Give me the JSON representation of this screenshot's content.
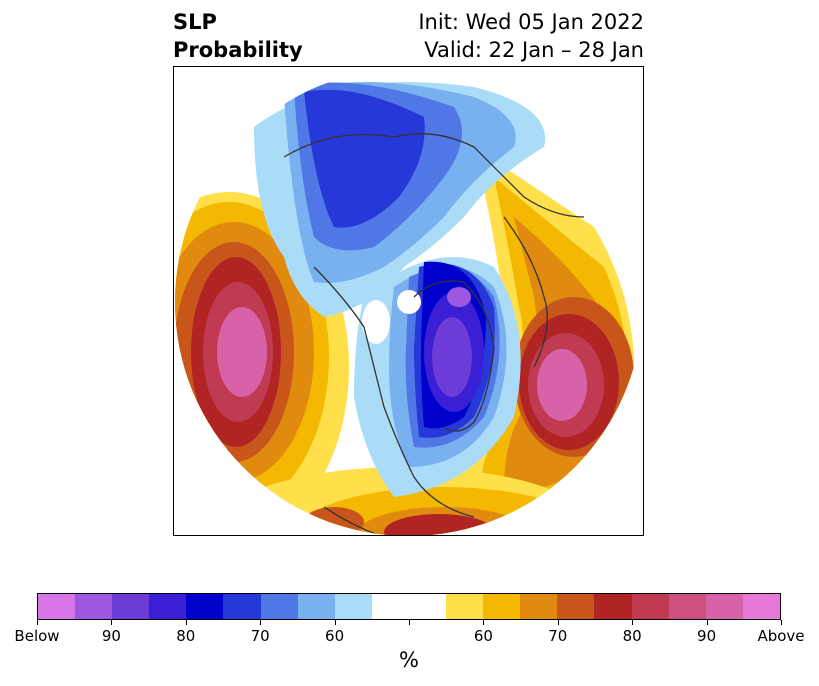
{
  "title": {
    "left_line1": "SLP",
    "left_line2": "Probability",
    "right_line1": "Init: Wed 05 Jan 2022",
    "right_line2": "Valid: 22 Jan – 28 Jan"
  },
  "colorbar": {
    "unit_label": "%",
    "colors": [
      "#d875e8",
      "#9e57e0",
      "#6c3bd8",
      "#3a1fd4",
      "#0000cc",
      "#2638d8",
      "#4f78e6",
      "#78b0f0",
      "#aadcf8",
      "#ffffff",
      "#ffffff",
      "#ffe04a",
      "#f4b800",
      "#e08a10",
      "#c8561a",
      "#b02424",
      "#c03a52",
      "#cc5080",
      "#d862a8",
      "#e678d8"
    ],
    "ticks": [
      "Below",
      "90",
      "80",
      "70",
      "60",
      "",
      "60",
      "70",
      "80",
      "90",
      "Above"
    ]
  },
  "map": {
    "projection": "north-polar-stereographic",
    "variable": "sea-level-pressure-probability"
  }
}
